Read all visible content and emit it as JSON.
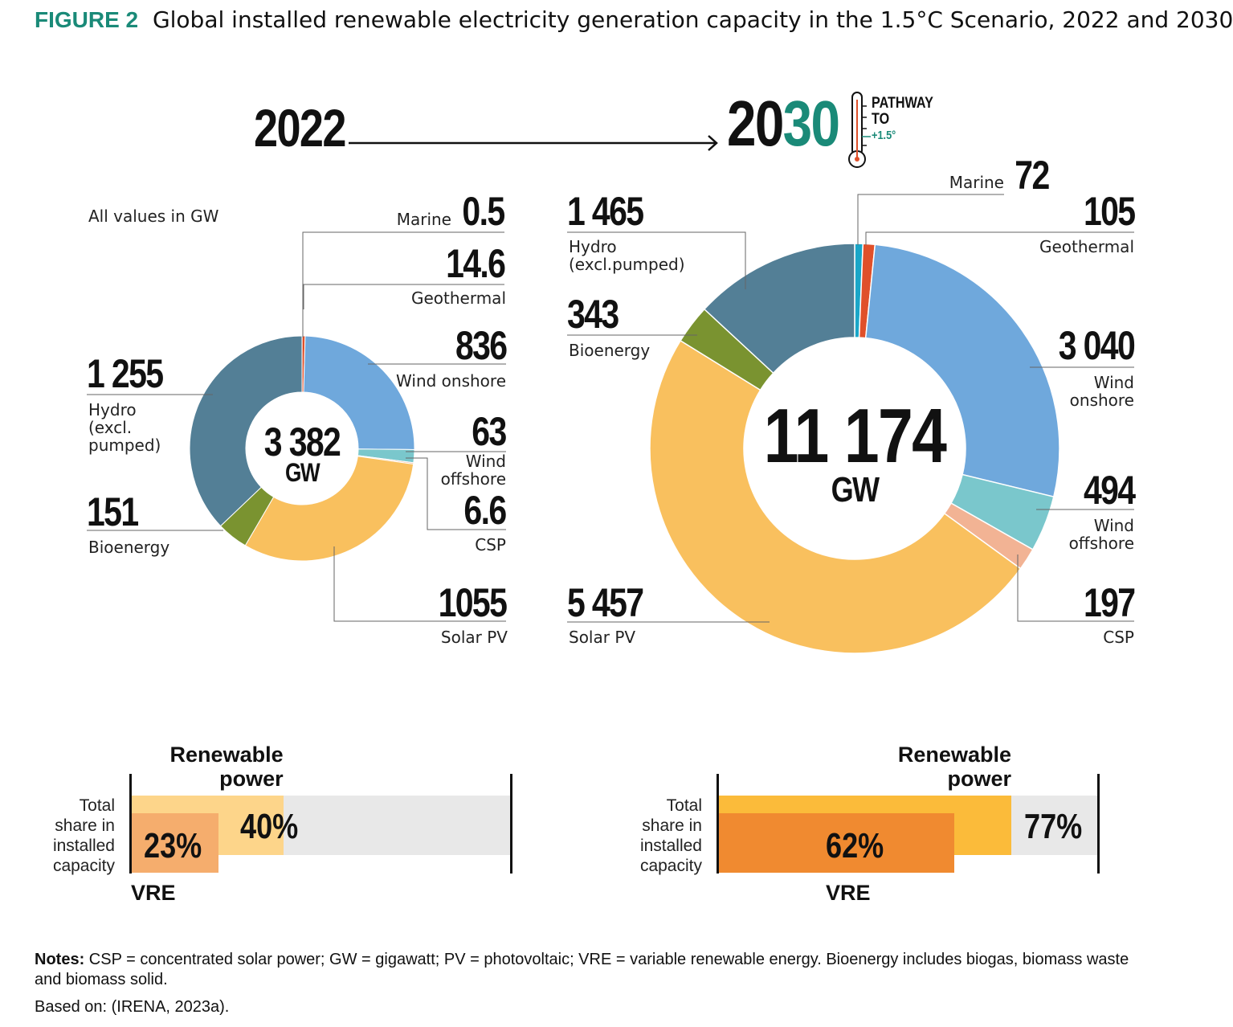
{
  "title": {
    "figure": "FIGURE 2",
    "text": "Global installed renewable electricity generation capacity in the 1.5°C Scenario, 2022 and 2030"
  },
  "years": {
    "from": "2022",
    "to_black": "20",
    "to_teal": "30",
    "pathway": "PATHWAY",
    "to": "TO",
    "temp": "+1.5°"
  },
  "units_note": "All values in GW",
  "colors": {
    "teal": "#1a8a78",
    "Marine": "#1aa6c8",
    "Geothermal": "#e0502a",
    "Wind onshore": "#6fa8dc",
    "Wind offshore": "#7ac7cc",
    "CSP": "#f2b394",
    "Solar PV": "#f9c05e",
    "Bioenergy": "#7a9330",
    "Hydro": "#537f96"
  },
  "chart_data": [
    {
      "type": "pie",
      "year": "2022",
      "total": "3 382",
      "unit": "GW",
      "categories": [
        "Marine",
        "Geothermal",
        "Wind onshore",
        "Wind offshore",
        "CSP",
        "Solar PV",
        "Bioenergy",
        "Hydro (excl. pumped)"
      ],
      "values": [
        0.5,
        14.6,
        836,
        63,
        6.6,
        1055,
        151,
        1255
      ],
      "value_labels": [
        "0.5",
        "14.6",
        "836",
        "63",
        "6.6",
        "1055",
        "151",
        "1 255"
      ],
      "labels": [
        "Marine",
        "Geothermal",
        "Wind onshore",
        "Wind offshore",
        "CSP",
        "Solar PV",
        "Bioenergy",
        "Hydro (excl. pumped)"
      ]
    },
    {
      "type": "pie",
      "year": "2030",
      "total": "11 174",
      "unit": "GW",
      "categories": [
        "Marine",
        "Geothermal",
        "Wind onshore",
        "Wind offshore",
        "CSP",
        "Solar PV",
        "Bioenergy",
        "Hydro (excl.pumped)"
      ],
      "values": [
        72,
        105,
        3040,
        494,
        197,
        5457,
        343,
        1465
      ],
      "value_labels": [
        "72",
        "105",
        "3 040",
        "494",
        "197",
        "5 457",
        "343",
        "1 465"
      ],
      "labels": [
        "Marine",
        "Geothermal",
        "Wind onshore",
        "Wind offshore",
        "CSP",
        "Solar PV",
        "Bioenergy",
        "Hydro (excl.pumped)"
      ]
    },
    {
      "type": "bar",
      "year": "2022",
      "ylabel": "Total share in installed capacity",
      "series": [
        {
          "name": "Renewable power",
          "value": 40,
          "label": "40%"
        },
        {
          "name": "VRE",
          "value": 23,
          "label": "23%"
        }
      ]
    },
    {
      "type": "bar",
      "year": "2030",
      "ylabel": "Total share in installed capacity",
      "series": [
        {
          "name": "Renewable power",
          "value": 77,
          "label": "77%"
        },
        {
          "name": "VRE",
          "value": 62,
          "label": "62%"
        }
      ]
    }
  ],
  "notes": {
    "label": "Notes:",
    "text": " CSP = concentrated solar power; GW = gigawatt; PV = photovoltaic; VRE = variable renewable energy. Bioenergy includes biogas, biomass waste and biomass solid.",
    "source": "Based on: (IRENA, 2023a)."
  }
}
